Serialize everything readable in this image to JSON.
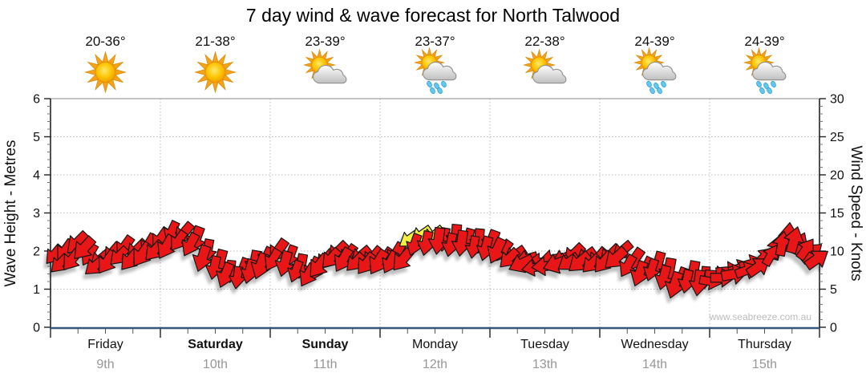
{
  "title": "7 day wind & wave forecast for North Talwood",
  "watermark": "www.seabreeze.com.au",
  "colors": {
    "arrow_red": "#e81313",
    "arrow_yellow": "#f3ee42",
    "axis_bottom_line": "#33577e",
    "grid": "#b9b9b9",
    "date_gray": "#979797"
  },
  "left_axis": {
    "label": "Wave Height - Metres",
    "min": 0,
    "max": 6,
    "tick_values": [
      0,
      1,
      2,
      3,
      4,
      5,
      6
    ]
  },
  "right_axis": {
    "label": "Wind Speed - Knots",
    "min": 0,
    "max": 30,
    "tick_values": [
      0,
      5,
      10,
      15,
      20,
      25,
      30
    ]
  },
  "days": [
    {
      "name": "Friday",
      "date": "9th",
      "temp": "20-36°",
      "icon": "sunny",
      "bold": false
    },
    {
      "name": "Saturday",
      "date": "10th",
      "temp": "21-38°",
      "icon": "sunny",
      "bold": true
    },
    {
      "name": "Sunday",
      "date": "11th",
      "temp": "sun-cloud",
      "bold": true
    },
    {
      "name": "Monday",
      "date": "12th",
      "temp": "23-37°",
      "icon": "sun-cloud-rain",
      "bold": false
    },
    {
      "name": "Tuesday",
      "date": "13th",
      "temp": "22-38°",
      "icon": "sun-cloud",
      "bold": false
    },
    {
      "name": "Wednesday",
      "date": "14th",
      "temp": "24-39°",
      "icon": "sun-cloud-rain",
      "bold": false
    },
    {
      "name": "Thursday",
      "date": "15th",
      "temp": "24-39°",
      "icon": "sun-cloud-rain",
      "bold": false
    }
  ],
  "day_fix": {
    "sunday_temp": "23-39°",
    "sunday_icon": "sun-cloud"
  },
  "chart_data": {
    "type": "scatter",
    "title": "7 day wind & wave forecast for North Talwood",
    "description": "Wind forecast arrows: y position = wind speed in knots (right axis, equivalently wave-height scale on left axis where 1 m = 5 kn); arrow rotation = wind direction (0 = pointing down/south, 90 = pointing left/west, 180 = up, 270 = right); colour = wind strength category (red = moderate, yellow = stronger gusts).",
    "x_unit": "days from chart start (Friday 9th 00:00 = 0, Thursday 15th 24:00 = 7)",
    "categories": [
      "Friday 9th",
      "Saturday 10th",
      "Sunday 11th",
      "Monday 12th",
      "Tuesday 13th",
      "Wednesday 14th",
      "Thursday 15th"
    ],
    "ylabel_left": "Wave Height - Metres",
    "ylabel_right": "Wind Speed - Knots",
    "ylim_left": [
      0,
      6
    ],
    "ylim_right": [
      0,
      30
    ],
    "grid": "dotted horizontal at 1-5 m and vertical at day boundaries",
    "legend_position": "none",
    "arrows": [
      {
        "t": 0.03,
        "kn": 9.5,
        "d": 40
      },
      {
        "t": 0.13,
        "kn": 10,
        "d": 35
      },
      {
        "t": 0.24,
        "kn": 11,
        "d": 45
      },
      {
        "t": 0.35,
        "kn": 9.5,
        "d": 30
      },
      {
        "t": 0.45,
        "kn": 8.8,
        "d": 50
      },
      {
        "t": 0.56,
        "kn": 9.8,
        "d": 40
      },
      {
        "t": 0.67,
        "kn": 10.5,
        "d": 35
      },
      {
        "t": 0.78,
        "kn": 10,
        "d": 45
      },
      {
        "t": 0.89,
        "kn": 10.8,
        "d": 30
      },
      {
        "t": 1.0,
        "kn": 11.5,
        "d": 35
      },
      {
        "t": 1.1,
        "kn": 12.5,
        "d": 25
      },
      {
        "t": 1.21,
        "kn": 12.3,
        "d": 40
      },
      {
        "t": 1.32,
        "kn": 11.5,
        "d": 20
      },
      {
        "t": 1.43,
        "kn": 10,
        "d": 10
      },
      {
        "t": 1.54,
        "kn": 8.5,
        "d": 15
      },
      {
        "t": 1.64,
        "kn": 7.3,
        "d": 5
      },
      {
        "t": 1.75,
        "kn": 7.5,
        "d": 20
      },
      {
        "t": 1.86,
        "kn": 8.3,
        "d": 10
      },
      {
        "t": 1.96,
        "kn": 9,
        "d": 25
      },
      {
        "t": 2.07,
        "kn": 10,
        "d": 35
      },
      {
        "t": 2.18,
        "kn": 9.3,
        "d": 20
      },
      {
        "t": 2.28,
        "kn": 8,
        "d": 10
      },
      {
        "t": 2.39,
        "kn": 7.5,
        "d": 25
      },
      {
        "t": 2.5,
        "kn": 8.8,
        "d": 40
      },
      {
        "t": 2.61,
        "kn": 9.8,
        "d": 45
      },
      {
        "t": 2.71,
        "kn": 9.5,
        "d": 35
      },
      {
        "t": 2.82,
        "kn": 9.3,
        "d": 50
      },
      {
        "t": 2.93,
        "kn": 9,
        "d": 40
      },
      {
        "t": 3.04,
        "kn": 9,
        "d": 35
      },
      {
        "t": 3.14,
        "kn": 9.5,
        "d": 30
      },
      {
        "t": 3.26,
        "kn": 11.5,
        "d": 55,
        "c": "y"
      },
      {
        "t": 3.37,
        "kn": 12,
        "d": 55,
        "c": "y"
      },
      {
        "t": 3.48,
        "kn": 11.8,
        "d": 50,
        "c": "y"
      },
      {
        "t": 3.58,
        "kn": 11.5,
        "d": 10
      },
      {
        "t": 3.69,
        "kn": 11.8,
        "d": 5
      },
      {
        "t": 3.8,
        "kn": 11.5,
        "d": 15
      },
      {
        "t": 3.9,
        "kn": 11.3,
        "d": 5
      },
      {
        "t": 4.01,
        "kn": 11,
        "d": 20
      },
      {
        "t": 4.12,
        "kn": 10,
        "d": 35
      },
      {
        "t": 4.22,
        "kn": 9.3,
        "d": 55
      },
      {
        "t": 4.33,
        "kn": 9,
        "d": 75
      },
      {
        "t": 4.44,
        "kn": 8.5,
        "d": 90
      },
      {
        "t": 4.55,
        "kn": 8.8,
        "d": 80
      },
      {
        "t": 4.66,
        "kn": 9,
        "d": 65
      },
      {
        "t": 4.76,
        "kn": 9.5,
        "d": 45
      },
      {
        "t": 4.87,
        "kn": 9.3,
        "d": 55
      },
      {
        "t": 4.98,
        "kn": 9,
        "d": 40
      },
      {
        "t": 5.09,
        "kn": 9.3,
        "d": 45
      },
      {
        "t": 5.2,
        "kn": 10,
        "d": 50
      },
      {
        "t": 5.31,
        "kn": 8.8,
        "d": 35
      },
      {
        "t": 5.42,
        "kn": 7.8,
        "d": 25
      },
      {
        "t": 5.53,
        "kn": 8.3,
        "d": 15
      },
      {
        "t": 5.63,
        "kn": 7.3,
        "d": 10
      },
      {
        "t": 5.74,
        "kn": 6.3,
        "d": 20
      },
      {
        "t": 5.85,
        "kn": 7,
        "d": 10
      },
      {
        "t": 5.96,
        "kn": 6.5,
        "d": 5
      },
      {
        "t": 6.07,
        "kn": 6.8,
        "d": 275
      },
      {
        "t": 6.18,
        "kn": 7.3,
        "d": 265
      },
      {
        "t": 6.28,
        "kn": 7.8,
        "d": 250
      },
      {
        "t": 6.39,
        "kn": 8.3,
        "d": 255
      },
      {
        "t": 6.5,
        "kn": 9.3,
        "d": 225
      },
      {
        "t": 6.61,
        "kn": 10.5,
        "d": 195
      },
      {
        "t": 6.72,
        "kn": 12,
        "d": 185
      },
      {
        "t": 6.82,
        "kn": 11,
        "d": 205
      },
      {
        "t": 6.93,
        "kn": 9.8,
        "d": 230
      },
      {
        "t": 0.08,
        "kn": 8.3,
        "d": 45
      },
      {
        "t": 0.19,
        "kn": 8.8,
        "d": 38
      },
      {
        "t": 0.3,
        "kn": 10.3,
        "d": 42
      },
      {
        "t": 0.4,
        "kn": 8,
        "d": 50
      },
      {
        "t": 0.51,
        "kn": 8.5,
        "d": 35
      },
      {
        "t": 0.62,
        "kn": 9.3,
        "d": 45
      },
      {
        "t": 0.72,
        "kn": 8.8,
        "d": 40
      },
      {
        "t": 0.83,
        "kn": 9.5,
        "d": 35
      },
      {
        "t": 0.94,
        "kn": 10,
        "d": 42
      },
      {
        "t": 1.05,
        "kn": 10.5,
        "d": 30
      },
      {
        "t": 1.16,
        "kn": 11.3,
        "d": 35
      },
      {
        "t": 1.27,
        "kn": 10.8,
        "d": 28
      },
      {
        "t": 1.38,
        "kn": 9,
        "d": 18
      },
      {
        "t": 1.49,
        "kn": 7.8,
        "d": 12
      },
      {
        "t": 1.59,
        "kn": 6.8,
        "d": 22
      },
      {
        "t": 1.7,
        "kn": 6.5,
        "d": 8
      },
      {
        "t": 1.81,
        "kn": 7.3,
        "d": 15
      },
      {
        "t": 1.91,
        "kn": 8,
        "d": 20
      },
      {
        "t": 2.02,
        "kn": 8.8,
        "d": 30
      },
      {
        "t": 2.13,
        "kn": 8.3,
        "d": 15
      },
      {
        "t": 2.23,
        "kn": 7.3,
        "d": 20
      },
      {
        "t": 2.34,
        "kn": 6.8,
        "d": 30
      },
      {
        "t": 2.44,
        "kn": 8,
        "d": 38
      },
      {
        "t": 2.55,
        "kn": 9,
        "d": 42
      },
      {
        "t": 2.66,
        "kn": 8.8,
        "d": 30
      },
      {
        "t": 2.77,
        "kn": 8.5,
        "d": 45
      },
      {
        "t": 2.87,
        "kn": 8.3,
        "d": 38
      },
      {
        "t": 2.98,
        "kn": 8.5,
        "d": 32
      },
      {
        "t": 3.09,
        "kn": 8.5,
        "d": 28
      },
      {
        "t": 3.2,
        "kn": 8.8,
        "d": 40
      },
      {
        "t": 3.31,
        "kn": 10.8,
        "d": 20
      },
      {
        "t": 3.42,
        "kn": 11,
        "d": 12
      },
      {
        "t": 3.53,
        "kn": 11.3,
        "d": 8
      },
      {
        "t": 3.64,
        "kn": 10.8,
        "d": 12
      },
      {
        "t": 3.74,
        "kn": 11,
        "d": 8
      },
      {
        "t": 3.85,
        "kn": 10.5,
        "d": 10
      },
      {
        "t": 3.96,
        "kn": 10.3,
        "d": 15
      },
      {
        "t": 4.06,
        "kn": 10,
        "d": 25
      },
      {
        "t": 4.17,
        "kn": 9,
        "d": 45
      },
      {
        "t": 4.28,
        "kn": 8.3,
        "d": 65
      },
      {
        "t": 4.39,
        "kn": 7.8,
        "d": 80
      },
      {
        "t": 4.49,
        "kn": 8,
        "d": 85
      },
      {
        "t": 4.6,
        "kn": 8.3,
        "d": 70
      },
      {
        "t": 4.71,
        "kn": 8.5,
        "d": 55
      },
      {
        "t": 4.81,
        "kn": 8.5,
        "d": 50
      },
      {
        "t": 4.92,
        "kn": 8.3,
        "d": 45
      },
      {
        "t": 5.03,
        "kn": 8.5,
        "d": 40
      },
      {
        "t": 5.14,
        "kn": 9,
        "d": 48
      },
      {
        "t": 5.25,
        "kn": 8,
        "d": 30
      },
      {
        "t": 5.36,
        "kn": 7,
        "d": 20
      },
      {
        "t": 5.47,
        "kn": 7.5,
        "d": 18
      },
      {
        "t": 5.58,
        "kn": 6.5,
        "d": 15
      },
      {
        "t": 5.68,
        "kn": 5.5,
        "d": 18
      },
      {
        "t": 5.79,
        "kn": 6,
        "d": 12
      },
      {
        "t": 5.9,
        "kn": 5.8,
        "d": 8
      },
      {
        "t": 6.01,
        "kn": 6,
        "d": 280
      },
      {
        "t": 6.12,
        "kn": 6.5,
        "d": 270
      },
      {
        "t": 6.23,
        "kn": 7,
        "d": 260
      },
      {
        "t": 6.34,
        "kn": 7.5,
        "d": 250
      },
      {
        "t": 6.45,
        "kn": 8,
        "d": 235
      },
      {
        "t": 6.56,
        "kn": 9.5,
        "d": 210
      },
      {
        "t": 6.66,
        "kn": 11,
        "d": 190
      },
      {
        "t": 6.77,
        "kn": 11.5,
        "d": 195
      },
      {
        "t": 6.88,
        "kn": 10.3,
        "d": 215
      },
      {
        "t": 6.98,
        "kn": 9,
        "d": 235
      }
    ]
  }
}
